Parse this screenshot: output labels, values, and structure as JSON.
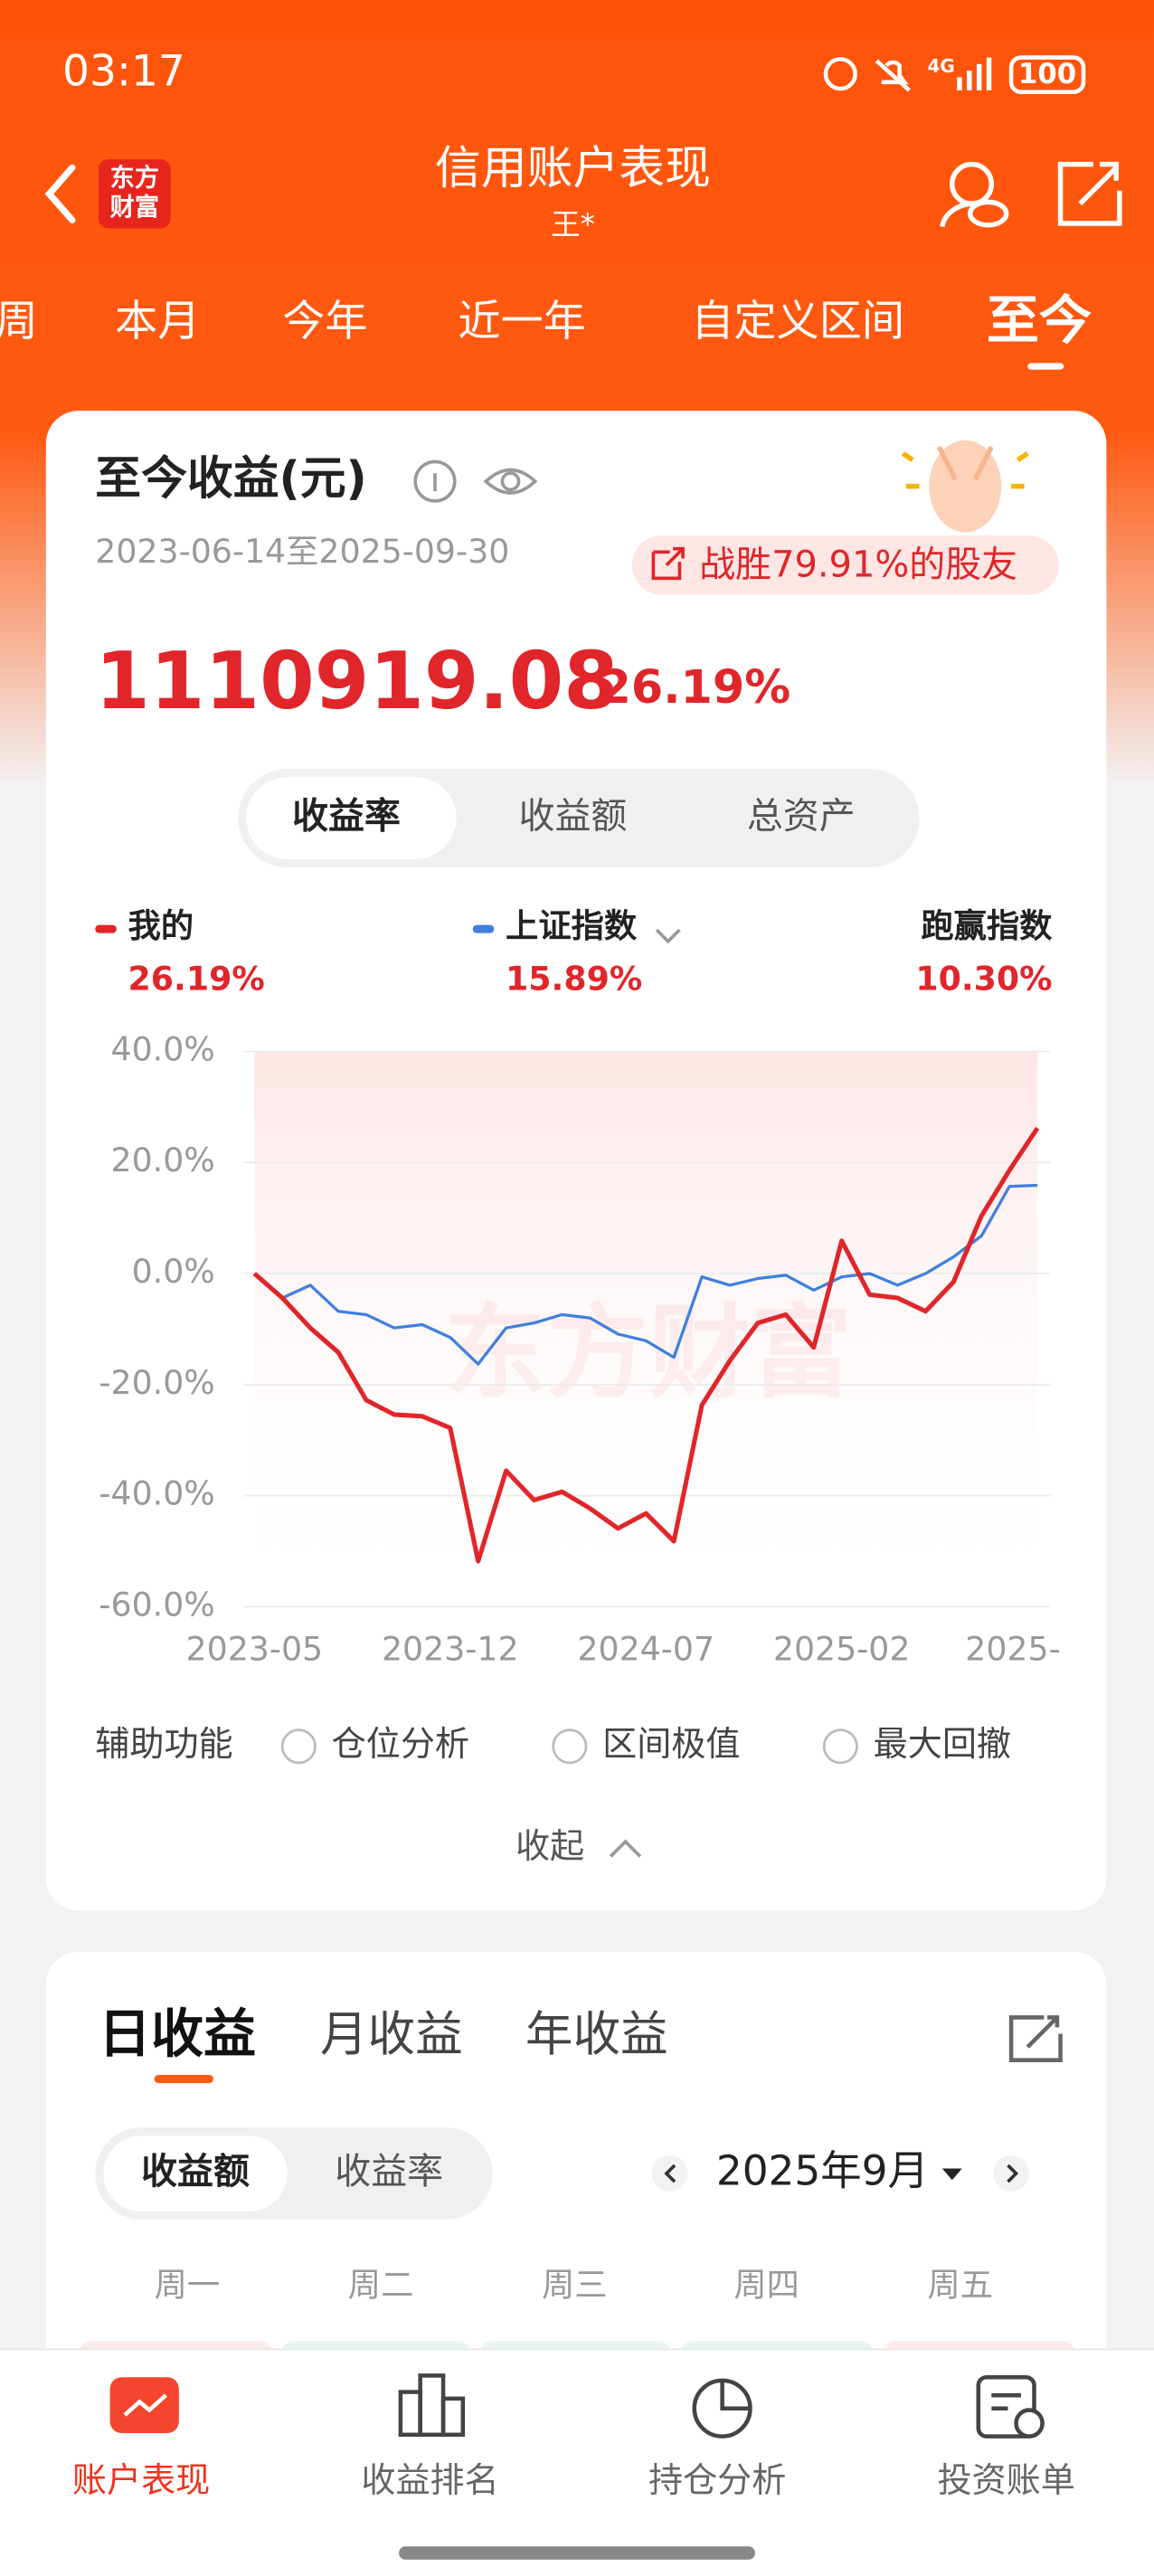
{
  "status_bar": {
    "time": "03:17",
    "network": "4G",
    "battery": "100"
  },
  "header": {
    "logo_lines": [
      "东方",
      "财富"
    ],
    "title": "信用账户表现",
    "subtitle": "王*"
  },
  "period_tabs": {
    "items": [
      "周",
      "本月",
      "今年",
      "近一年",
      "自定义区间",
      "至今"
    ],
    "active": 5
  },
  "summary": {
    "title": "至今收益(元)",
    "date_range": "2023-06-14至2025-09-30",
    "badge": "战胜79.91%的股友",
    "amount": "1110919.08",
    "return": "26.19%"
  },
  "metric_tabs": {
    "items": [
      "收益率",
      "收益额",
      "总资产"
    ],
    "active": 0
  },
  "chart_data": {
    "type": "line",
    "watermark": "东方财富",
    "grid": true,
    "x": [
      "2023-05",
      "2023-06",
      "2023-07",
      "2023-08",
      "2023-09",
      "2023-10",
      "2023-11",
      "2023-12",
      "2024-01",
      "2024-02",
      "2024-03",
      "2024-04",
      "2024-05",
      "2024-06",
      "2024-07",
      "2024-08",
      "2024-09",
      "2024-10",
      "2024-11",
      "2024-12",
      "2025-01",
      "2025-02",
      "2025-03",
      "2025-04",
      "2025-05",
      "2025-06",
      "2025-07",
      "2025-08",
      "2025-09"
    ],
    "xticks": [
      "2023-05",
      "2023-12",
      "2024-07",
      "2025-02",
      {
        "value": "2025-09",
        "label": "2025-"
      }
    ],
    "ylim": [
      -60,
      40
    ],
    "yticks": [
      {
        "value": 40,
        "label": "40.0%"
      },
      {
        "value": 20,
        "label": "20.0%"
      },
      {
        "value": 0,
        "label": "0.0%"
      },
      {
        "value": -20,
        "label": "-20.0%"
      },
      {
        "value": -40,
        "label": "-40.0%"
      },
      {
        "value": -60,
        "label": "-60.0%"
      }
    ],
    "series": [
      {
        "name": "我的",
        "color": "#e0262b",
        "legend_value": "26.19%",
        "values": [
          0,
          -4.4,
          -9.8,
          -14.2,
          -22.8,
          -25.4,
          -25.7,
          -27.8,
          -51.8,
          -35.5,
          -40.8,
          -39.3,
          -42.3,
          -45.9,
          -43.2,
          -48.2,
          -23.7,
          -15.7,
          -8.9,
          -7.4,
          -13.3,
          5.9,
          -3.8,
          -4.4,
          -6.8,
          -1.5,
          10.4,
          18.6,
          26.19
        ]
      },
      {
        "name": "上证指数",
        "color": "#3f7fe0",
        "legend_value": "15.89%",
        "values": [
          0,
          -4.4,
          -2.1,
          -6.8,
          -7.4,
          -9.8,
          -9.2,
          -11.5,
          -16.3,
          -9.8,
          -8.9,
          -7.4,
          -8.0,
          -10.9,
          -12.1,
          -15.1,
          -0.6,
          -2.1,
          -0.9,
          -0.3,
          -3.0,
          -0.6,
          0,
          -2.1,
          0,
          3.0,
          6.8,
          15.7,
          15.89
        ]
      }
    ],
    "outperform": {
      "label": "跑赢指数",
      "value": "10.30%"
    }
  },
  "tools": {
    "label": "辅助功能",
    "options": [
      "仓位分析",
      "区间极值",
      "最大回撤"
    ],
    "collapse": "收起"
  },
  "daily": {
    "tabs": [
      "日收益",
      "月收益",
      "年收益"
    ],
    "active": 0,
    "modes": [
      "收益额",
      "收益率"
    ],
    "mode_active": 0,
    "month": "2025年9月",
    "weekdays": [
      "周一",
      "周二",
      "周三",
      "周四",
      "周五"
    ]
  },
  "bottom_nav": {
    "items": [
      "账户表现",
      "收益排名",
      "持仓分析",
      "投资账单"
    ],
    "active": 0
  }
}
